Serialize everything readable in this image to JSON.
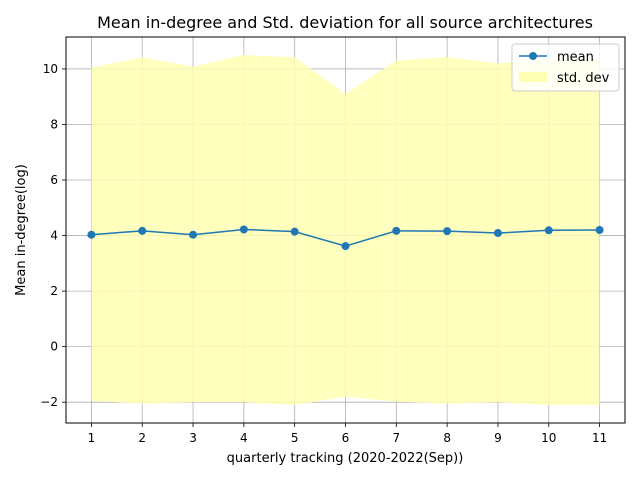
{
  "chart_data": {
    "type": "line",
    "title": "Mean in-degree and Std. deviation for all source architectures",
    "xlabel": "quarterly tracking (2020-2022(Sep))",
    "ylabel": "Mean in-degree(log)",
    "x": [
      1,
      2,
      3,
      4,
      5,
      6,
      7,
      8,
      9,
      10,
      11
    ],
    "xlim": [
      0.5,
      11.5
    ],
    "ylim": [
      -2.75,
      11.15
    ],
    "yticks": [
      -2,
      0,
      2,
      4,
      6,
      8,
      10
    ],
    "grid": true,
    "legend_position": "top-right",
    "series": [
      {
        "name": "mean",
        "kind": "line-with-markers",
        "color": "#1f77b4",
        "values": [
          4.03,
          4.17,
          4.03,
          4.22,
          4.14,
          3.62,
          4.17,
          4.16,
          4.09,
          4.19,
          4.2
        ]
      },
      {
        "name": "std. dev",
        "kind": "band",
        "color": "#ffffb3",
        "upper": [
          10.05,
          10.42,
          10.08,
          10.5,
          10.42,
          9.1,
          10.3,
          10.42,
          10.2,
          10.35,
          10.3
        ],
        "lower": [
          -1.95,
          -2.05,
          -2.0,
          -2.0,
          -2.1,
          -1.8,
          -1.98,
          -2.05,
          -2.0,
          -2.1,
          -2.1
        ]
      }
    ]
  }
}
